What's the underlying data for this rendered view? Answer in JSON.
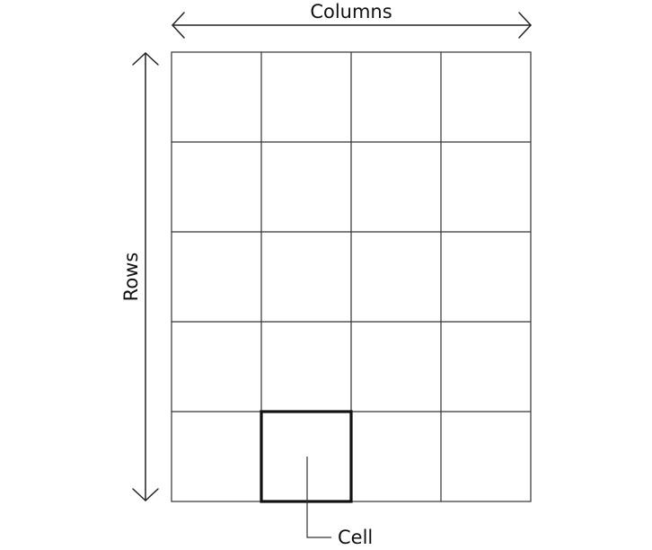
{
  "diagram": {
    "columns_label": "Columns",
    "rows_label": "Rows",
    "cell_label": "Cell",
    "grid": {
      "rows": 5,
      "columns": 4
    },
    "highlighted_cell": {
      "row": 5,
      "column": 2
    },
    "colors": {
      "lines": "#333333",
      "highlight": "#111111",
      "background": "#ffffff"
    }
  }
}
